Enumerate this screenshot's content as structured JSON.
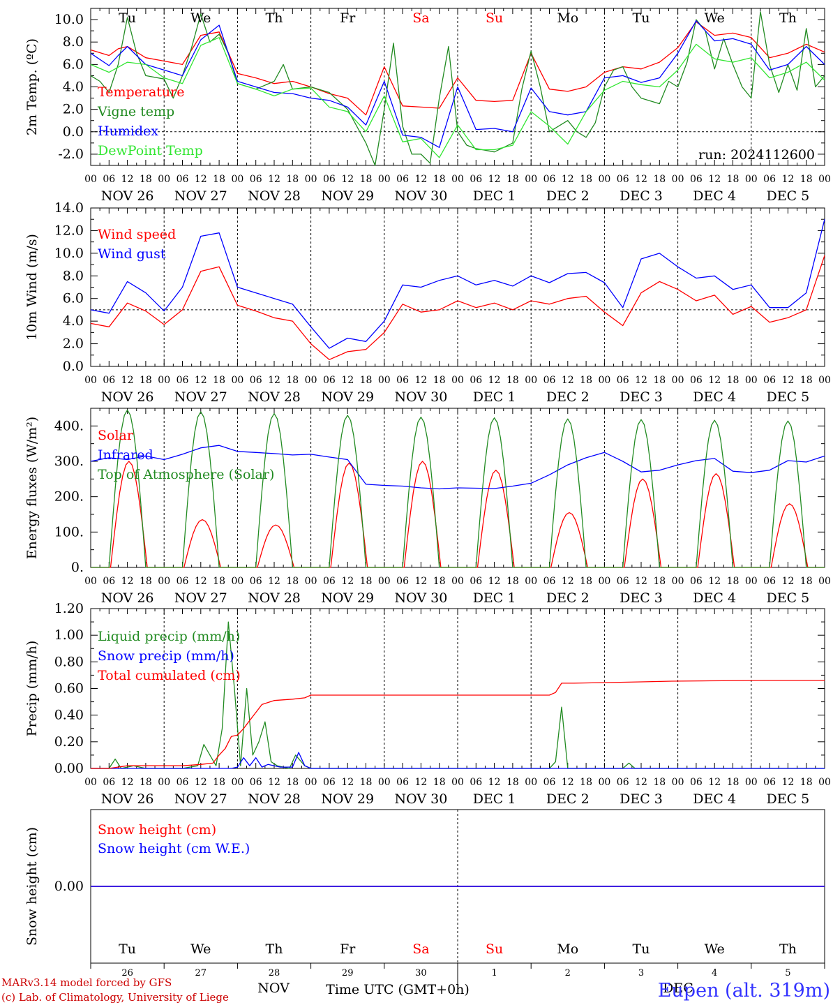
{
  "colors": {
    "red": "#ff0000",
    "darkgreen": "#228b22",
    "blue": "#0000ff",
    "lightgreen": "#32e632",
    "purple": "#800080",
    "footer_blue": "#3333ff",
    "black": "#000000"
  },
  "day_names": [
    "Tu",
    "We",
    "Th",
    "Fr",
    "Sa",
    "Su",
    "Mo",
    "Tu",
    "We",
    "Th"
  ],
  "weekend_days": [
    4,
    5
  ],
  "date_labels": [
    "NOV 26",
    "NOV 27",
    "NOV 28",
    "NOV 29",
    "NOV 30",
    "DEC  1",
    "DEC  2",
    "DEC  3",
    "DEC  4",
    "DEC  5"
  ],
  "hour_labels": [
    "00",
    "06",
    "12",
    "18"
  ],
  "hour_end_label": "00",
  "bottom_day_numbers": [
    "26",
    "27",
    "28",
    "29",
    "30",
    "1",
    "2",
    "3",
    "4",
    "5"
  ],
  "bottom_months": {
    "left": "NOV",
    "right": "DEC"
  },
  "run_label": "run: 2024112600",
  "footer": {
    "credit_line1": "MARv3.14 model forced by GFS",
    "credit_line2": "(c) Lab. of Climatology, University of Liege",
    "axis_title": "Time UTC (GMT+0h)",
    "station": "Eupen (alt. 319m)"
  },
  "chart_data": [
    {
      "type": "line",
      "ylabel": "2m Temp. (ºC)",
      "ylim": [
        -3,
        11
      ],
      "yticks": [
        "-2.0",
        "0.0",
        "2.0",
        "4.0",
        "6.0",
        "8.0",
        "10.0"
      ],
      "ytick_values": [
        -2,
        0,
        2,
        4,
        6,
        8,
        10
      ],
      "reference_line": 0,
      "x_unit": "hours since NOV 26 00 UTC",
      "xlim": [
        0,
        240
      ],
      "series": [
        {
          "name": "Temperature",
          "color": "#ff0000",
          "x": [
            0,
            6,
            9,
            12,
            18,
            24,
            30,
            36,
            42,
            48,
            54,
            60,
            66,
            72,
            78,
            84,
            90,
            96,
            102,
            108,
            114,
            120,
            126,
            132,
            138,
            144,
            150,
            156,
            162,
            168,
            174,
            180,
            186,
            192,
            198,
            204,
            210,
            216,
            222,
            228,
            234,
            240
          ],
          "values": [
            7.3,
            6.8,
            7.4,
            7.6,
            6.6,
            6.3,
            6.0,
            8.6,
            8.9,
            5.2,
            4.8,
            4.3,
            4.5,
            4.0,
            3.4,
            3.0,
            1.5,
            5.8,
            2.3,
            2.2,
            2.1,
            4.8,
            2.8,
            2.7,
            2.8,
            7.0,
            3.8,
            3.6,
            4.0,
            5.3,
            5.8,
            5.6,
            6.2,
            7.5,
            9.8,
            8.6,
            8.8,
            8.4,
            6.6,
            7.0,
            7.8,
            7.1
          ]
        },
        {
          "name": "Vigne temp",
          "color": "#228b22",
          "x": [
            0,
            3,
            6,
            9,
            12,
            15,
            18,
            24,
            27,
            30,
            33,
            36,
            39,
            42,
            45,
            48,
            54,
            60,
            63,
            66,
            72,
            78,
            84,
            90,
            93,
            96,
            99,
            102,
            105,
            108,
            111,
            114,
            117,
            120,
            123,
            126,
            132,
            138,
            141,
            144,
            147,
            150,
            156,
            159,
            162,
            165,
            168,
            171,
            174,
            177,
            180,
            186,
            189,
            192,
            195,
            198,
            201,
            204,
            207,
            210,
            213,
            216,
            219,
            222,
            225,
            228,
            231,
            234,
            237,
            240
          ],
          "values": [
            5.0,
            4.5,
            3.5,
            6.0,
            10.2,
            7.0,
            5.0,
            4.7,
            3.0,
            5.0,
            7.5,
            10.5,
            8.0,
            8.7,
            7.0,
            4.3,
            3.8,
            4.5,
            6.0,
            3.8,
            4.0,
            3.5,
            2.0,
            -1.0,
            -3.0,
            2.0,
            7.9,
            0.5,
            -2.0,
            -2.0,
            -2.8,
            3.0,
            7.6,
            0.0,
            -1.2,
            -1.5,
            -1.8,
            -1.0,
            3.8,
            7.2,
            4.0,
            0.0,
            1.0,
            0.0,
            -0.5,
            0.8,
            4.0,
            5.5,
            5.8,
            4.0,
            3.0,
            2.5,
            4.5,
            4.0,
            6.2,
            10.0,
            9.0,
            5.6,
            8.3,
            6.0,
            4.0,
            3.0,
            10.7,
            6.0,
            3.5,
            6.0,
            3.7,
            9.2,
            4.0,
            5.0
          ]
        },
        {
          "name": "Humidex",
          "color": "#0000ff",
          "x": [
            0,
            6,
            9,
            12,
            18,
            24,
            30,
            36,
            42,
            48,
            54,
            60,
            66,
            72,
            78,
            84,
            90,
            96,
            102,
            108,
            114,
            120,
            126,
            132,
            138,
            144,
            150,
            156,
            162,
            168,
            174,
            180,
            186,
            192,
            198,
            204,
            210,
            216,
            222,
            228,
            234,
            240
          ],
          "values": [
            7.0,
            5.9,
            6.8,
            7.6,
            6.0,
            5.5,
            5.0,
            8.2,
            9.5,
            4.5,
            4.0,
            3.5,
            3.4,
            3.0,
            2.8,
            2.2,
            0.6,
            4.5,
            -0.3,
            -0.5,
            -1.4,
            4.0,
            0.2,
            0.3,
            0.0,
            3.9,
            1.8,
            1.5,
            1.8,
            4.8,
            5.0,
            4.4,
            4.8,
            7.0,
            9.9,
            8.1,
            8.3,
            7.8,
            5.5,
            6.0,
            7.6,
            6.0
          ]
        },
        {
          "name": "DewPoint Temp",
          "color": "#32e632",
          "x": [
            0,
            6,
            12,
            18,
            24,
            30,
            36,
            42,
            48,
            54,
            60,
            66,
            72,
            78,
            84,
            90,
            96,
            102,
            108,
            114,
            120,
            126,
            132,
            138,
            144,
            150,
            156,
            162,
            168,
            174,
            180,
            186,
            192,
            198,
            204,
            210,
            216,
            222,
            228,
            234,
            240
          ],
          "values": [
            6.0,
            5.3,
            6.2,
            6.0,
            4.8,
            4.3,
            7.7,
            8.4,
            4.3,
            3.8,
            3.2,
            3.8,
            3.9,
            2.2,
            1.8,
            0.0,
            3.2,
            -0.9,
            -0.6,
            -2.3,
            0.6,
            -1.6,
            -1.6,
            -1.2,
            1.8,
            0.5,
            -1.1,
            1.8,
            3.7,
            4.5,
            4.2,
            4.0,
            5.5,
            7.8,
            6.5,
            6.2,
            6.6,
            4.8,
            5.3,
            6.2,
            4.6
          ]
        }
      ]
    },
    {
      "type": "line",
      "ylabel": "10m Wind (m/s)",
      "ylim": [
        0,
        14
      ],
      "yticks": [
        "0.0",
        "2.0",
        "4.0",
        "6.0",
        "8.0",
        "10.0",
        "12.0",
        "14.0"
      ],
      "ytick_values": [
        0,
        2,
        4,
        6,
        8,
        10,
        12,
        14
      ],
      "reference_line": 5,
      "x_unit": "hours since NOV 26 00 UTC",
      "xlim": [
        0,
        240
      ],
      "series": [
        {
          "name": "Wind speed",
          "color": "#ff0000",
          "x": [
            0,
            6,
            12,
            18,
            24,
            30,
            36,
            42,
            48,
            54,
            60,
            66,
            72,
            78,
            84,
            90,
            96,
            102,
            108,
            114,
            120,
            126,
            132,
            138,
            144,
            150,
            156,
            162,
            168,
            174,
            180,
            186,
            192,
            198,
            204,
            210,
            216,
            222,
            228,
            234,
            240
          ],
          "values": [
            3.8,
            3.5,
            5.6,
            4.9,
            3.7,
            5.0,
            8.4,
            8.8,
            5.4,
            4.9,
            4.3,
            4.0,
            2.0,
            0.6,
            1.3,
            1.5,
            3.0,
            5.5,
            4.8,
            5.0,
            5.8,
            5.2,
            5.6,
            5.0,
            5.8,
            5.5,
            6.0,
            6.2,
            4.8,
            3.6,
            6.5,
            7.5,
            6.8,
            5.8,
            6.3,
            4.6,
            5.3,
            3.9,
            4.3,
            5.0,
            9.8
          ]
        },
        {
          "name": "Wind gust",
          "color": "#0000ff",
          "x": [
            0,
            6,
            12,
            18,
            24,
            30,
            36,
            42,
            48,
            54,
            60,
            66,
            72,
            78,
            84,
            90,
            96,
            102,
            108,
            114,
            120,
            126,
            132,
            138,
            144,
            150,
            156,
            162,
            168,
            174,
            180,
            186,
            192,
            198,
            204,
            210,
            216,
            222,
            228,
            234,
            240
          ],
          "values": [
            5.0,
            4.7,
            7.5,
            6.5,
            4.9,
            7.0,
            11.5,
            11.8,
            7.0,
            6.5,
            6.0,
            5.5,
            3.5,
            1.6,
            2.5,
            2.2,
            4.0,
            7.2,
            7.0,
            7.6,
            8.0,
            7.2,
            7.6,
            7.1,
            8.0,
            7.4,
            8.2,
            8.3,
            7.4,
            5.2,
            9.5,
            10.0,
            8.8,
            7.8,
            8.0,
            6.8,
            7.2,
            5.2,
            5.2,
            6.5,
            13.0
          ]
        }
      ]
    },
    {
      "type": "line",
      "ylabel": "Energy fluxes (W/m²)",
      "ylim": [
        0,
        450
      ],
      "yticks": [
        "0.",
        "100.",
        "200.",
        "300.",
        "400."
      ],
      "ytick_values": [
        0,
        100,
        200,
        300,
        400
      ],
      "x_unit": "hours since NOV 26 00 UTC",
      "xlim": [
        0,
        240
      ],
      "series": [
        {
          "name": "Solar",
          "color": "#ff0000",
          "peak_hour": 12.5,
          "daily_peaks": [
            300,
            135,
            120,
            295,
            300,
            275,
            155,
            250,
            265,
            180
          ]
        },
        {
          "name": "Infrared",
          "color": "#0000ff",
          "x": [
            0,
            6,
            12,
            18,
            24,
            30,
            36,
            42,
            48,
            54,
            60,
            66,
            72,
            78,
            84,
            90,
            96,
            102,
            108,
            114,
            120,
            126,
            132,
            138,
            144,
            150,
            156,
            162,
            168,
            174,
            180,
            186,
            192,
            198,
            204,
            210,
            216,
            222,
            228,
            234,
            240
          ],
          "values": [
            300,
            310,
            305,
            315,
            305,
            320,
            338,
            345,
            328,
            325,
            322,
            318,
            320,
            312,
            305,
            235,
            232,
            230,
            225,
            222,
            225,
            224,
            223,
            230,
            238,
            262,
            290,
            310,
            325,
            300,
            270,
            275,
            290,
            302,
            308,
            272,
            268,
            275,
            302,
            298,
            315
          ]
        },
        {
          "name": "Top of Atmosphere (Solar)",
          "color": "#228b22",
          "peak_hour": 12.0,
          "daily_peaks": [
            445,
            440,
            435,
            430,
            425,
            423,
            420,
            418,
            416,
            414
          ]
        }
      ]
    },
    {
      "type": "line",
      "ylabel": "Precip (mm/h)",
      "ylim": [
        0,
        1.2
      ],
      "yticks": [
        "0.00",
        "0.20",
        "0.40",
        "0.60",
        "0.80",
        "1.00",
        "1.20"
      ],
      "ytick_values": [
        0,
        0.2,
        0.4,
        0.6,
        0.8,
        1.0,
        1.2
      ],
      "x_unit": "hours since NOV 26 00 UTC",
      "xlim": [
        0,
        240
      ],
      "series": [
        {
          "name": "Liquid precip (mm/h)",
          "color": "#228b22",
          "x": [
            0,
            6,
            8,
            10,
            14,
            18,
            30,
            35,
            37,
            39,
            41,
            43,
            45,
            47,
            49,
            51,
            53,
            55,
            57,
            59,
            61,
            63,
            65,
            67,
            70,
            72,
            150,
            152,
            154,
            156,
            174,
            176,
            178,
            240
          ],
          "values": [
            0,
            0,
            0.07,
            0,
            0.02,
            0,
            0,
            0.02,
            0.18,
            0.1,
            0.02,
            0.3,
            1.1,
            0.6,
            0.02,
            0.6,
            0.1,
            0.2,
            0.35,
            0.05,
            0.02,
            0.01,
            0.0,
            0.1,
            0.02,
            0,
            0,
            0.05,
            0.46,
            0.0,
            0,
            0.04,
            0,
            0
          ]
        },
        {
          "name": "Snow precip (mm/h)",
          "color": "#0000ff",
          "x": [
            0,
            46,
            48,
            50,
            52,
            54,
            56,
            58,
            60,
            62,
            64,
            66,
            68,
            70,
            72,
            240
          ],
          "values": [
            0,
            0,
            0.01,
            0.08,
            0.02,
            0.08,
            0.01,
            0.03,
            0.02,
            0.01,
            0.01,
            0.01,
            0.12,
            0.02,
            0,
            0
          ]
        },
        {
          "name": "Total cumulated (cm)",
          "color": "#ff0000",
          "x": [
            0,
            6,
            12,
            18,
            24,
            30,
            36,
            40,
            42,
            44,
            46,
            48,
            50,
            52,
            54,
            56,
            60,
            66,
            70,
            72,
            96,
            150,
            152,
            154,
            158,
            170,
            180,
            190,
            200,
            220,
            240
          ],
          "values": [
            0,
            0,
            0.02,
            0.02,
            0.02,
            0.02,
            0.03,
            0.04,
            0.1,
            0.15,
            0.24,
            0.25,
            0.3,
            0.36,
            0.42,
            0.48,
            0.51,
            0.52,
            0.53,
            0.55,
            0.55,
            0.55,
            0.57,
            0.64,
            0.64,
            0.645,
            0.65,
            0.655,
            0.657,
            0.66,
            0.66
          ]
        }
      ]
    },
    {
      "type": "line",
      "ylabel": "Snow height (cm)",
      "ytick_labels": [
        "0.00"
      ],
      "x_unit": "hours since NOV 26 00 UTC",
      "xlim": [
        0,
        240
      ],
      "series": [
        {
          "name": "Snow height (cm)",
          "color": "#ff0000",
          "x": [
            0,
            240
          ],
          "values": [
            0,
            0
          ]
        },
        {
          "name": "Snow height (cm W.E.)",
          "color": "#0000ff",
          "x": [
            0,
            240
          ],
          "values": [
            0,
            0
          ]
        }
      ]
    }
  ]
}
